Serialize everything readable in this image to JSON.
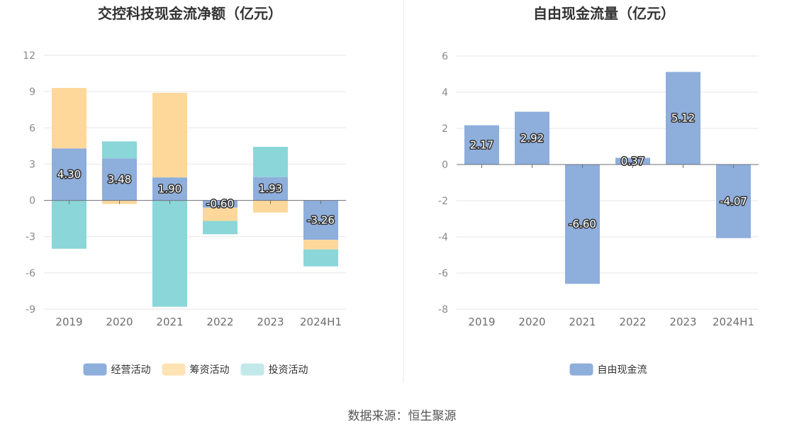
{
  "source": "数据来源：恒生聚源",
  "chart_data": [
    {
      "type": "bar",
      "stacked": true,
      "title": "交控科技现金流净额（亿元）",
      "categories": [
        "2019",
        "2020",
        "2021",
        "2022",
        "2023",
        "2024H1"
      ],
      "ylim": [
        -9,
        12
      ],
      "yticks": [
        12,
        9,
        6,
        3,
        0,
        -3,
        -6,
        -9
      ],
      "grid": true,
      "legend_position": "bottom",
      "series": [
        {
          "name": "经营活动",
          "color": "#8eaedc",
          "values": [
            4.3,
            3.48,
            1.9,
            -0.6,
            1.93,
            -3.26
          ],
          "labels": [
            "4.30",
            "3.48",
            "1.90",
            "-0.60",
            "1.93",
            "-3.26"
          ]
        },
        {
          "name": "筹资活动",
          "color": "#fdd89a",
          "values": [
            5.0,
            -0.3,
            7.0,
            -1.1,
            -1.0,
            -0.8
          ]
        },
        {
          "name": "投资活动",
          "color": "#8ad6d8",
          "values": [
            -4.0,
            1.4,
            -8.8,
            -1.1,
            2.5,
            -1.4
          ]
        }
      ],
      "legend": [
        {
          "name": "经营活动",
          "color": "#8eaedc"
        },
        {
          "name": "筹资活动",
          "color": "#ffe3b4"
        },
        {
          "name": "投资活动",
          "color": "#c2e9ea"
        }
      ]
    },
    {
      "type": "bar",
      "title": "自由现金流量（亿元）",
      "categories": [
        "2019",
        "2020",
        "2021",
        "2022",
        "2023",
        "2024H1"
      ],
      "ylim": [
        -8,
        6
      ],
      "yticks": [
        6,
        4,
        2,
        0,
        -2,
        -4,
        -6,
        -8
      ],
      "grid": true,
      "legend_position": "bottom",
      "series": [
        {
          "name": "自由现金流",
          "color": "#8eaedc",
          "values": [
            2.17,
            2.92,
            -6.6,
            0.37,
            5.12,
            -4.07
          ],
          "labels": [
            "2.17",
            "2.92",
            "-6.60",
            "0.37",
            "5.12",
            "-4.07"
          ]
        }
      ],
      "legend": [
        {
          "name": "自由现金流",
          "color": "#8eaedc"
        }
      ]
    }
  ]
}
